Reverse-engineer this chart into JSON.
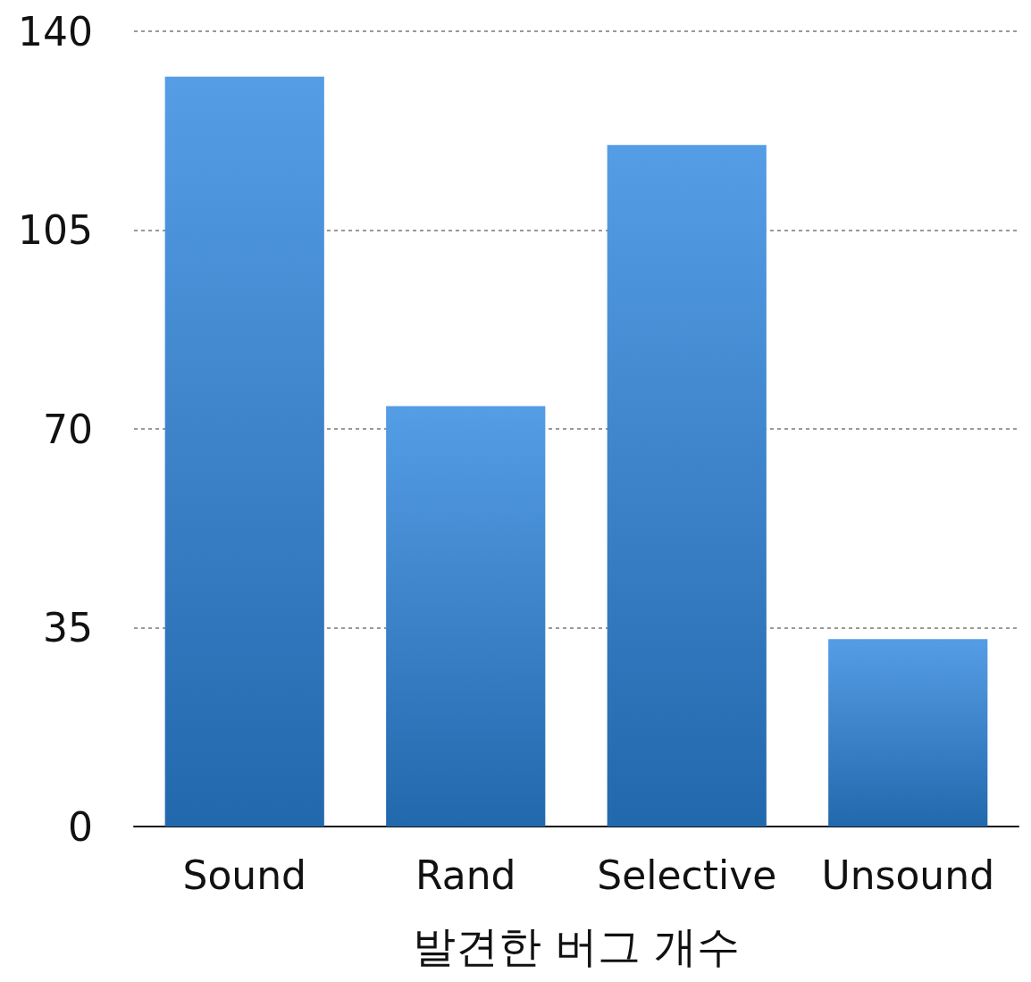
{
  "chart_data": {
    "type": "bar",
    "xlabel": "발견한 버그 개수",
    "categories": [
      "Sound",
      "Rand",
      "Selective",
      "Unsound"
    ],
    "series": [
      {
        "color": "#2b85de",
        "values": [
          132,
          74,
          120,
          33
        ]
      }
    ],
    "ylim": [
      0,
      140
    ],
    "yticks": [
      0,
      35,
      70,
      105,
      140
    ],
    "grid": "y"
  }
}
